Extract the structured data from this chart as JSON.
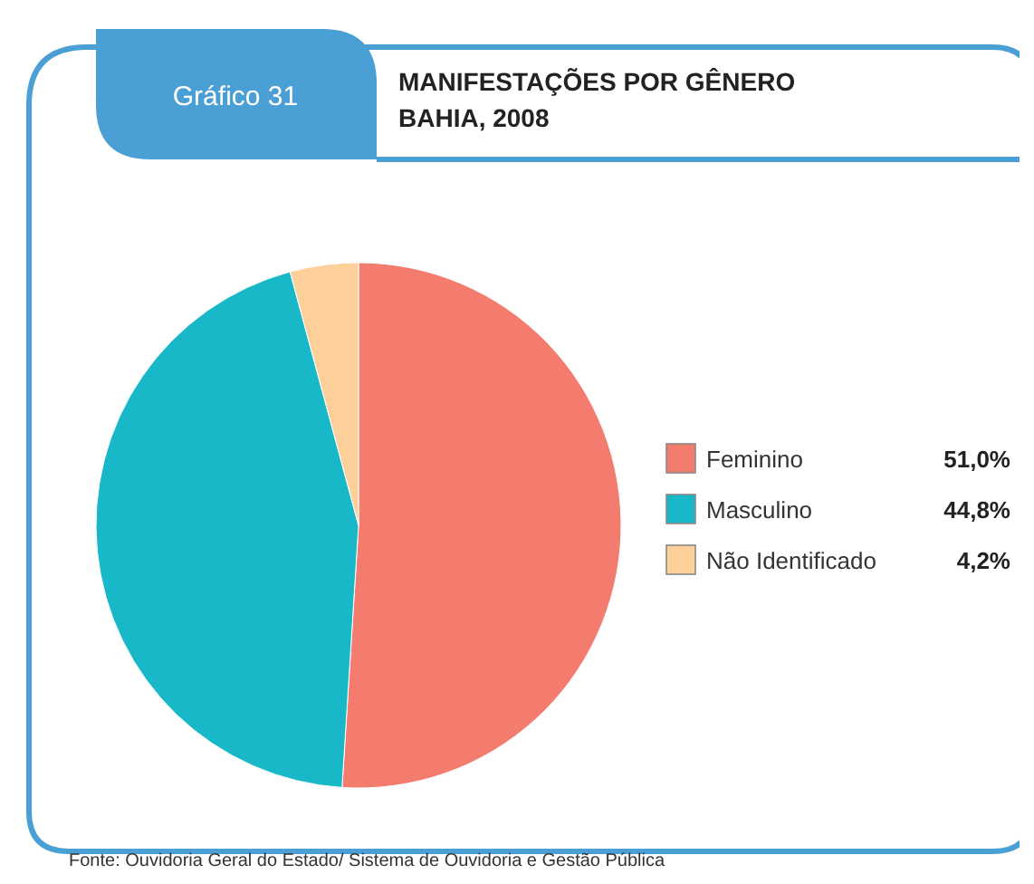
{
  "chart_data": {
    "type": "pie",
    "title": "MANIFESTAÇÕES POR GÊNERO",
    "subtitle": "BAHIA, 2008",
    "categories": [
      "Feminino",
      "Masculino",
      "Não Identificado"
    ],
    "values": [
      51.0,
      44.8,
      4.2
    ],
    "value_labels": [
      "51,0%",
      "44,8%",
      "4,2%"
    ],
    "colors": [
      "#f47c6e",
      "#19b8c8",
      "#fdd09a"
    ],
    "legend": "right",
    "annotations": [
      "Gráfico 31",
      "Fonte: Ouvidoria Geral do Estado/ Sistema de Ouvidoria e Gestão Pública"
    ]
  }
}
